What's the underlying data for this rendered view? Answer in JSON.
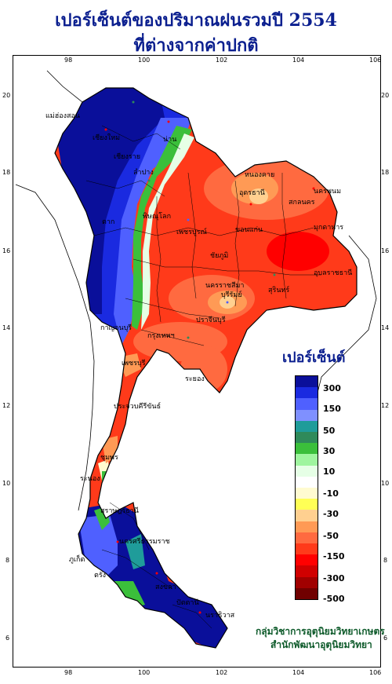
{
  "title": {
    "line1": "เปอร์เซ็นต์ของปริมาณฝนรวมปี  2554",
    "line2": "ที่ต่างจากค่าปกติ"
  },
  "axes": {
    "lon_ticks": [
      "98",
      "100",
      "102",
      "104",
      "106"
    ],
    "lat_ticks": [
      "20",
      "18",
      "16",
      "14",
      "12",
      "10",
      "8",
      "6"
    ]
  },
  "legend": {
    "title": "เปอร์เซ็นต์",
    "labels": [
      "300",
      "150",
      "50",
      "30",
      "10",
      "-10",
      "-30",
      "-50",
      "-150",
      "-300",
      "-500"
    ],
    "colors": [
      "#0a0f9a",
      "#1a2ae0",
      "#4f60ff",
      "#7f90ff",
      "#1f9c9a",
      "#2f8a5a",
      "#3bbf3b",
      "#9ff59f",
      "#e6ffe6",
      "#ffffff",
      "#fffbd0",
      "#ffff55",
      "#ffd090",
      "#ff9a55",
      "#ff6a40",
      "#ff3a1a",
      "#ff0000",
      "#d00000",
      "#a00000",
      "#700000"
    ]
  },
  "places": [
    "เชียงราย",
    "แม่ฮ่องสอน",
    "เชียงใหม่",
    "น่าน",
    "ลำปาง",
    "ตาก",
    "พิษณุโลก",
    "เพชรบูรณ์",
    "หนองคาย",
    "อุดรธานี",
    "นครพนม",
    "สกลนคร",
    "มุกดาหาร",
    "ขอนแก่น",
    "ชัยภูมิ",
    "นครราชสีมา",
    "อุบลราชธานี",
    "สุรินทร์",
    "บุรีรัมย์",
    "ปราจีนบุรี",
    "ระยอง",
    "ประจวบคีรีขันธ์",
    "ชุมพร",
    "ระนอง",
    "สุราษฎร์ธานี",
    "นครศรีธรรมราช",
    "ภูเก็ต",
    "ตรัง",
    "สงขลา",
    "ปัตตานี",
    "นราธิวาส",
    "กาญจนบุรี",
    "กรุงเทพฯ",
    "เพชรบุรี"
  ],
  "credit": {
    "line1": "กลุ่มวิชาการอุตุนิยมวิทยาเกษตร",
    "line2": "สำนักพัฒนาอุตุนิยมวิทยา"
  }
}
